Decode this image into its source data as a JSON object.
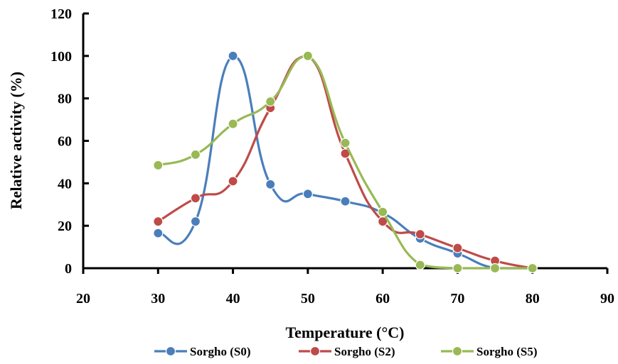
{
  "chart_data": {
    "type": "line",
    "title": "",
    "xlabel": "Temperature (°C)",
    "ylabel": "Relative activity (%)",
    "xlim": [
      20,
      90
    ],
    "ylim": [
      0,
      120
    ],
    "xticks": [
      20,
      30,
      40,
      50,
      60,
      70,
      80,
      90
    ],
    "yticks": [
      0,
      20,
      40,
      60,
      80,
      100,
      120
    ],
    "x_tick_labels": [
      "20",
      "30",
      "40",
      "50",
      "60",
      "70",
      "80",
      "90"
    ],
    "y_tick_labels": [
      "0",
      "20",
      "40",
      "60",
      "80",
      "100",
      "120"
    ],
    "grid": false,
    "legend_position": "bottom",
    "series": [
      {
        "name": "Sorgho (S0)",
        "color": "#4a7ebb",
        "x": [
          30,
          35,
          40,
          45,
          50,
          55,
          60,
          65,
          70,
          75,
          80
        ],
        "y": [
          16.5,
          22,
          100,
          39.5,
          35,
          31.5,
          26,
          14,
          7,
          0,
          0
        ]
      },
      {
        "name": "Sorgho (S2)",
        "color": "#be4b48",
        "x": [
          30,
          35,
          40,
          45,
          50,
          55,
          60,
          65,
          70,
          75,
          80
        ],
        "y": [
          22,
          33,
          41,
          75.5,
          100,
          54,
          22,
          16,
          9.5,
          3.5,
          0
        ]
      },
      {
        "name": "Sorgho (S5)",
        "color": "#98b954",
        "x": [
          30,
          35,
          40,
          45,
          50,
          55,
          60,
          65,
          70,
          75,
          80
        ],
        "y": [
          48.5,
          53.5,
          68,
          78.5,
          100,
          59,
          26.5,
          1.5,
          0,
          0,
          0
        ]
      }
    ]
  }
}
